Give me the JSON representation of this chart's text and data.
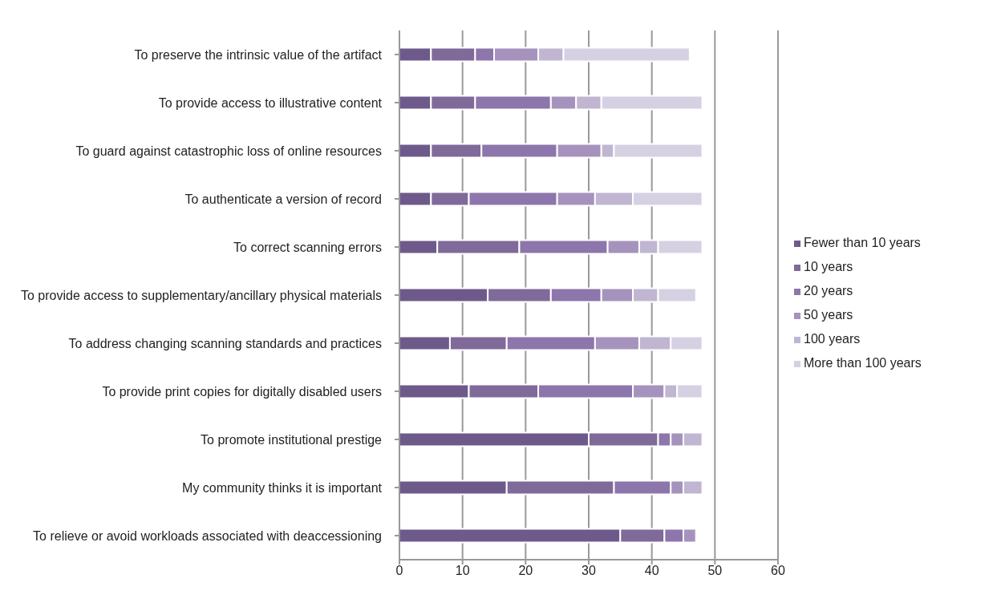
{
  "chart_data": {
    "type": "bar",
    "orientation": "horizontal",
    "stacked": true,
    "categories": [
      "To preserve the intrinsic value of the artifact",
      "To provide access to illustrative content",
      "To guard against catastrophic loss of online resources",
      "To authenticate a version of record",
      "To correct scanning errors",
      "To provide access to supplementary/ancillary physical materials",
      "To address changing scanning standards and practices",
      "To provide print copies for digitally disabled users",
      "To promote institutional prestige",
      "My community thinks it is important",
      "To relieve or avoid workloads associated with deaccessioning"
    ],
    "series": [
      {
        "name": "Fewer than 10 years",
        "color": "#6e5a8a",
        "values": [
          5,
          5,
          5,
          5,
          6,
          14,
          8,
          11,
          30,
          17,
          35
        ]
      },
      {
        "name": "10 years",
        "color": "#7f6a9a",
        "values": [
          7,
          7,
          8,
          6,
          13,
          10,
          9,
          11,
          11,
          17,
          7
        ]
      },
      {
        "name": "20 years",
        "color": "#8d76ab",
        "values": [
          3,
          12,
          12,
          14,
          14,
          8,
          14,
          15,
          2,
          9,
          3
        ]
      },
      {
        "name": "50 years",
        "color": "#a593bd",
        "values": [
          7,
          4,
          7,
          6,
          5,
          5,
          7,
          5,
          2,
          2,
          2
        ]
      },
      {
        "name": "100 years",
        "color": "#c0b6d1",
        "values": [
          4,
          4,
          2,
          6,
          3,
          4,
          5,
          2,
          3,
          3,
          0
        ]
      },
      {
        "name": "More than 100 years",
        "color": "#d6d1e2",
        "values": [
          20,
          16,
          14,
          11,
          7,
          6,
          5,
          4,
          0,
          0,
          0
        ]
      }
    ],
    "xlim": [
      0,
      60
    ],
    "xticks": [
      0,
      10,
      20,
      30,
      40,
      50,
      60
    ],
    "grid": "x",
    "legend": "right"
  }
}
